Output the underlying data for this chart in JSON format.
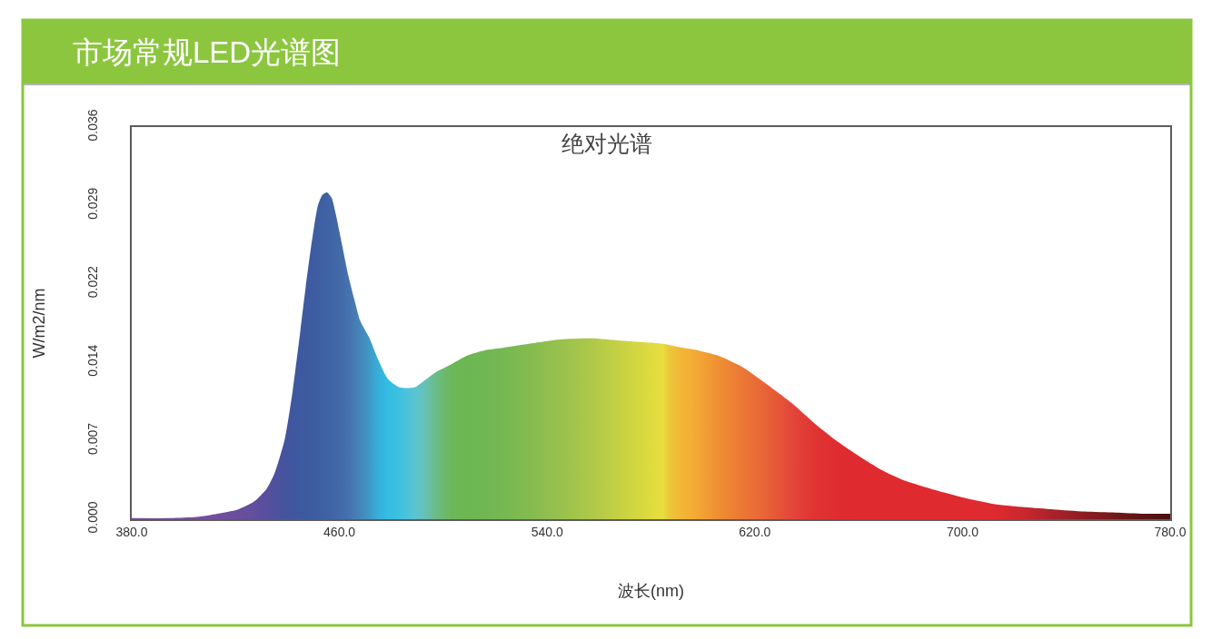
{
  "chart_data": {
    "type": "area",
    "title": "市场常规LED光谱图",
    "subtitle": "绝对光谱",
    "xlabel": "波长(nm)",
    "ylabel": "W/m2/nm",
    "x": [
      380,
      395,
      405,
      413,
      421,
      427,
      432,
      435,
      439,
      442,
      445,
      447,
      449.5,
      451.7,
      453.5,
      455.2,
      457,
      458.7,
      461,
      463.4,
      465.7,
      468,
      471.6,
      475,
      478.6,
      483.2,
      489,
      492.6,
      497.2,
      503,
      509,
      516,
      522,
      533,
      545,
      557,
      568,
      580,
      584.5,
      587,
      591,
      596,
      606,
      615,
      624,
      634,
      643,
      652,
      662,
      669,
      677,
      689,
      700,
      712,
      724,
      735,
      747,
      759,
      770,
      780
    ],
    "values": [
      0.0001,
      0.0001,
      0.0002,
      0.0005,
      0.0009,
      0.0016,
      0.0028,
      0.0042,
      0.0074,
      0.0118,
      0.0174,
      0.0213,
      0.0257,
      0.0288,
      0.0298,
      0.03,
      0.0295,
      0.0279,
      0.0252,
      0.0224,
      0.0202,
      0.0182,
      0.0166,
      0.0146,
      0.0129,
      0.0121,
      0.0121,
      0.0127,
      0.0135,
      0.0142,
      0.015,
      0.0155,
      0.0157,
      0.0161,
      0.0165,
      0.0166,
      0.0164,
      0.0162,
      0.0161,
      0.016,
      0.0158,
      0.0156,
      0.015,
      0.014,
      0.0125,
      0.0107,
      0.0088,
      0.0071,
      0.0055,
      0.0045,
      0.0036,
      0.0027,
      0.002,
      0.0014,
      0.0011,
      0.0009,
      0.0007,
      0.0006,
      0.0005,
      0.0005
    ],
    "colors": [
      "#7b4f9d",
      "#7a4f9d",
      "#774e9c",
      "#724e9c",
      "#6a4e9c",
      "#614f9d",
      "#574f9e",
      "#4f519e",
      "#45549e",
      "#3f579f",
      "#3d599f",
      "#3d5aa0",
      "#3e5ca1",
      "#3e5ea2",
      "#3f60a3",
      "#3f62a4",
      "#4064a5",
      "#4167a7",
      "#436ba9",
      "#4572ad",
      "#467bb2",
      "#4585ba",
      "#3f99c6",
      "#36b0da",
      "#33bde3",
      "#3ec1df",
      "#5ac4d3",
      "#66c2bb",
      "#6bbc86",
      "#6db75a",
      "#6db752",
      "#6fb752",
      "#75b851",
      "#83bb50",
      "#98c14d",
      "#aec84a",
      "#c6d144",
      "#dedb3f",
      "#e8de3e",
      "#ecc83a",
      "#f2b836",
      "#f4ad35",
      "#ef8f33",
      "#ec7834",
      "#e86437",
      "#e3473a",
      "#e03433",
      "#df2c30",
      "#df2a2f",
      "#df2a2f",
      "#df2a2f",
      "#df2a2f",
      "#df2a30",
      "#de2a30",
      "#c8272d",
      "#a9222a",
      "#8d1d22",
      "#731819",
      "#5c1314",
      "#4a0f10"
    ],
    "xlim": [
      380,
      780
    ],
    "xticks": [
      {
        "value": 380,
        "label": "380.0"
      },
      {
        "value": 460,
        "label": "460.0"
      },
      {
        "value": 540,
        "label": "540.0"
      },
      {
        "value": 620,
        "label": "620.0"
      },
      {
        "value": 700,
        "label": "700.0"
      },
      {
        "value": 780,
        "label": "780.0"
      }
    ],
    "ylim": [
      0,
      0.036
    ],
    "yticks": [
      {
        "value": 0,
        "label": "0.000"
      },
      {
        "value": 0.0072,
        "label": "0.007"
      },
      {
        "value": 0.0144,
        "label": "0.014"
      },
      {
        "value": 0.0216,
        "label": "0.022"
      },
      {
        "value": 0.0288,
        "label": "0.029"
      },
      {
        "value": 0.036,
        "label": "0.036"
      }
    ],
    "grid": false
  }
}
